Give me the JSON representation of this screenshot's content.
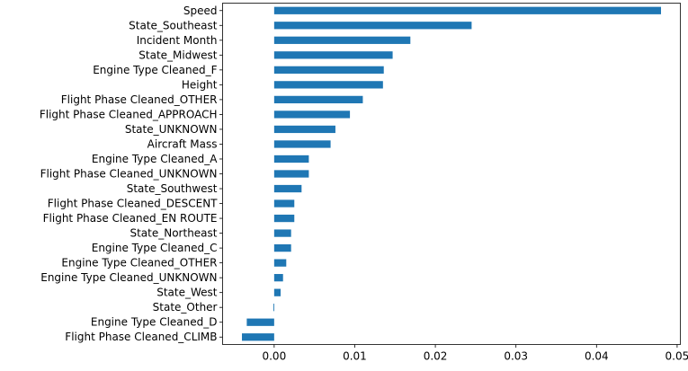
{
  "chart_data": {
    "type": "bar",
    "orientation": "horizontal",
    "categories": [
      "Speed",
      "State_Southeast",
      "Incident Month",
      "State_Midwest",
      "Engine Type Cleaned_F",
      "Height",
      "Flight Phase Cleaned_OTHER",
      "Flight Phase Cleaned_APPROACH",
      "State_UNKNOWN",
      "Aircraft Mass",
      "Engine Type Cleaned_A",
      "Flight Phase Cleaned_UNKNOWN",
      "State_Southwest",
      "Flight Phase Cleaned_DESCENT",
      "Flight Phase Cleaned_EN ROUTE",
      "State_Northeast",
      "Engine Type Cleaned_C",
      "Engine Type Cleaned_OTHER",
      "Engine Type Cleaned_UNKNOWN",
      "State_West",
      "State_Other",
      "Engine Type Cleaned_D",
      "Flight Phase Cleaned_CLIMB"
    ],
    "values": [
      0.048,
      0.0245,
      0.0169,
      0.0147,
      0.0136,
      0.0135,
      0.011,
      0.0094,
      0.0076,
      0.007,
      0.0043,
      0.0043,
      0.0034,
      0.0025,
      0.0025,
      0.0021,
      0.0021,
      0.0015,
      0.0011,
      0.0008,
      -0.0001,
      -0.0034,
      -0.004
    ],
    "xticks": [
      0.0,
      0.01,
      0.02,
      0.03,
      0.04,
      0.05
    ],
    "xtick_labels": [
      "0.00",
      "0.01",
      "0.02",
      "0.03",
      "0.04",
      "0.05"
    ],
    "xlim": [
      -0.0064,
      0.0504
    ],
    "color": "#1f77b4",
    "title": "",
    "xlabel": "",
    "ylabel": "",
    "grid": false,
    "legend": "none"
  }
}
